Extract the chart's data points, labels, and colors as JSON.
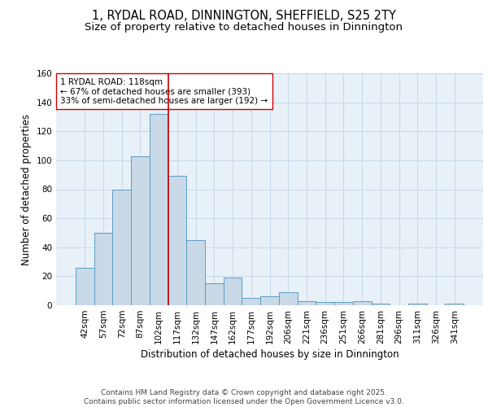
{
  "title_line1": "1, RYDAL ROAD, DINNINGTON, SHEFFIELD, S25 2TY",
  "title_line2": "Size of property relative to detached houses in Dinnington",
  "xlabel": "Distribution of detached houses by size in Dinnington",
  "ylabel": "Number of detached properties",
  "bar_labels": [
    "42sqm",
    "57sqm",
    "72sqm",
    "87sqm",
    "102sqm",
    "117sqm",
    "132sqm",
    "147sqm",
    "162sqm",
    "177sqm",
    "192sqm",
    "206sqm",
    "221sqm",
    "236sqm",
    "251sqm",
    "266sqm",
    "281sqm",
    "296sqm",
    "311sqm",
    "326sqm",
    "341sqm"
  ],
  "bar_values": [
    26,
    50,
    80,
    103,
    132,
    89,
    45,
    15,
    19,
    5,
    6,
    9,
    3,
    2,
    2,
    3,
    1,
    0,
    1,
    0,
    1
  ],
  "bar_color": "#c9d9e8",
  "bar_edge_color": "#5a9fc4",
  "vline_x_index": 5,
  "vline_color": "#cc0000",
  "annotation_text": "1 RYDAL ROAD: 118sqm\n← 67% of detached houses are smaller (393)\n33% of semi-detached houses are larger (192) →",
  "annotation_box_color": "white",
  "annotation_box_edge_color": "#cc0000",
  "ylim": [
    0,
    160
  ],
  "yticks": [
    0,
    20,
    40,
    60,
    80,
    100,
    120,
    140,
    160
  ],
  "grid_color": "#c8d8e8",
  "background_color": "#e8f0f8",
  "footer_text": "Contains HM Land Registry data © Crown copyright and database right 2025.\nContains public sector information licensed under the Open Government Licence v3.0.",
  "title_fontsize": 10.5,
  "subtitle_fontsize": 9.5,
  "axis_label_fontsize": 8.5,
  "tick_fontsize": 7.5,
  "annotation_fontsize": 7.5,
  "footer_fontsize": 6.5
}
